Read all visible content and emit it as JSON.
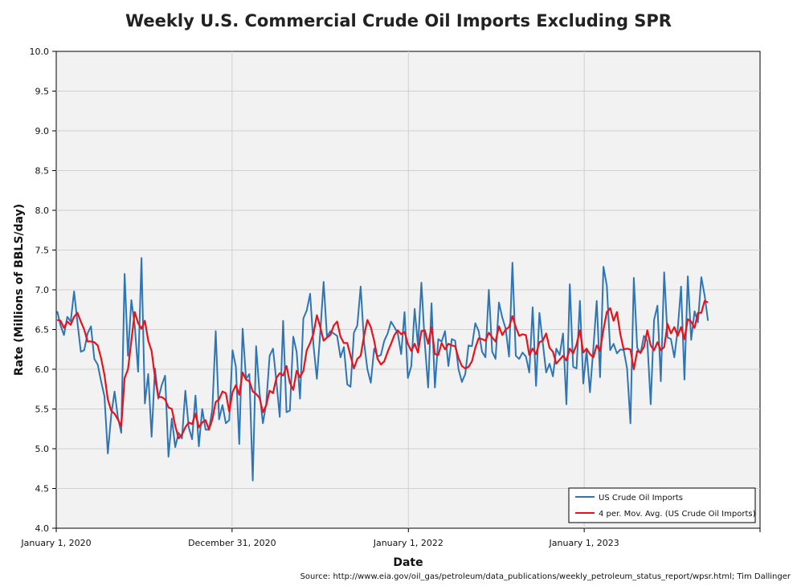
{
  "chart_data": {
    "type": "line",
    "title": "Weekly U.S. Commercial Crude Oil Imports Excluding SPR",
    "xlabel": "Date",
    "ylabel": "Rate (Millions of BBLS/day)",
    "ylim": [
      4.0,
      10.0
    ],
    "yticks": [
      "4.0",
      "4.5",
      "5.0",
      "5.5",
      "6.0",
      "6.5",
      "7.0",
      "7.5",
      "8.0",
      "8.5",
      "9.0",
      "9.5",
      "10.0"
    ],
    "xtick_labels": [
      "January 1, 2020",
      "December 31, 2020",
      "January 1, 2022",
      "January 1, 2023"
    ],
    "x_start": "2020-01-03",
    "grid": true,
    "legend_position": "bottom-right",
    "source": "Source: http://www.eia.gov/oil_gas/petroleum/data_publications/weekly_petroleum_status_report/wpsr.html; Tim Dallinger",
    "series": [
      {
        "name": "US Crude Oil Imports",
        "color": "#2E75B6",
        "values": [
          6.73,
          6.55,
          6.43,
          6.66,
          6.6,
          6.98,
          6.59,
          6.22,
          6.24,
          6.45,
          6.54,
          6.13,
          6.06,
          5.85,
          5.66,
          4.94,
          5.42,
          5.72,
          5.4,
          5.2,
          7.2,
          6.17,
          6.87,
          6.55,
          5.97,
          7.4,
          5.57,
          5.94,
          5.15,
          6.01,
          5.63,
          5.8,
          5.92,
          4.9,
          5.38,
          5.02,
          5.2,
          5.13,
          5.73,
          5.27,
          5.12,
          5.67,
          5.03,
          5.5,
          5.24,
          5.24,
          5.5,
          6.48,
          5.37,
          5.55,
          5.32,
          5.36,
          6.24,
          6.03,
          5.06,
          6.51,
          5.88,
          5.94,
          4.6,
          6.29,
          5.71,
          5.32,
          5.57,
          6.17,
          6.26,
          5.85,
          5.4,
          6.61,
          5.46,
          5.48,
          6.41,
          6.22,
          5.63,
          6.64,
          6.74,
          6.95,
          6.3,
          5.88,
          6.46,
          7.1,
          6.41,
          6.48,
          6.45,
          6.42,
          6.15,
          6.28,
          5.81,
          5.78,
          6.46,
          6.55,
          7.04,
          6.34,
          6.0,
          5.83,
          6.26,
          6.16,
          6.18,
          6.36,
          6.45,
          6.6,
          6.53,
          6.45,
          6.19,
          6.72,
          5.89,
          6.04,
          6.76,
          6.29,
          7.09,
          6.33,
          5.77,
          6.83,
          5.77,
          6.38,
          6.35,
          6.48,
          6.04,
          6.38,
          6.36,
          6.0,
          5.84,
          5.94,
          6.3,
          6.29,
          6.58,
          6.48,
          6.22,
          6.15,
          7.0,
          6.22,
          6.13,
          6.84,
          6.65,
          6.51,
          6.16,
          7.34,
          6.17,
          6.13,
          6.21,
          6.16,
          5.96,
          6.78,
          5.79,
          6.71,
          6.33,
          5.96,
          6.07,
          5.91,
          6.26,
          6.18,
          6.45,
          5.56,
          7.07,
          6.03,
          6.01,
          6.86,
          5.82,
          6.24,
          5.71,
          6.26,
          6.86,
          5.9,
          7.29,
          7.05,
          6.24,
          6.32,
          6.2,
          6.25,
          6.24,
          6.01,
          5.32,
          7.15,
          6.27,
          6.2,
          6.42,
          6.36,
          5.56,
          6.62,
          6.8,
          5.85,
          7.22,
          6.4,
          6.38,
          6.15,
          6.5,
          7.04,
          5.87,
          7.17,
          6.37,
          6.73,
          6.59,
          7.16,
          6.93,
          6.61
        ]
      },
      {
        "name": "4 per. Mov. Avg. (US Crude Oil Imports)",
        "color": "#E8131A",
        "values": [
          6.62,
          6.61,
          6.52,
          6.6,
          6.56,
          6.66,
          6.71,
          6.6,
          6.5,
          6.35,
          6.35,
          6.34,
          6.3,
          6.14,
          5.93,
          5.62,
          5.48,
          5.44,
          5.37,
          5.28,
          5.89,
          6.0,
          6.36,
          6.72,
          6.58,
          6.51,
          6.61,
          6.36,
          6.23,
          5.9,
          5.65,
          5.65,
          5.62,
          5.52,
          5.5,
          5.29,
          5.13,
          5.18,
          5.27,
          5.33,
          5.31,
          5.44,
          5.27,
          5.33,
          5.36,
          5.24,
          5.37,
          5.59,
          5.62,
          5.72,
          5.7,
          5.47,
          5.71,
          5.8,
          5.68,
          5.96,
          5.87,
          5.85,
          5.72,
          5.69,
          5.64,
          5.46,
          5.55,
          5.73,
          5.7,
          5.89,
          5.95,
          5.92,
          6.04,
          5.83,
          5.74,
          5.98,
          5.9,
          5.98,
          6.24,
          6.33,
          6.45,
          6.68,
          6.53,
          6.36,
          6.4,
          6.43,
          6.55,
          6.6,
          6.41,
          6.33,
          6.33,
          6.17,
          6.01,
          6.13,
          6.17,
          6.42,
          6.62,
          6.53,
          6.36,
          6.13,
          6.06,
          6.1,
          6.22,
          6.32,
          6.43,
          6.49,
          6.44,
          6.47,
          6.32,
          6.23,
          6.32,
          6.21,
          6.48,
          6.49,
          6.32,
          6.53,
          6.19,
          6.18,
          6.33,
          6.25,
          6.32,
          6.3,
          6.29,
          6.14,
          6.04,
          6.01,
          6.03,
          6.1,
          6.27,
          6.39,
          6.38,
          6.36,
          6.46,
          6.4,
          6.35,
          6.54,
          6.43,
          6.5,
          6.53,
          6.67,
          6.53,
          6.42,
          6.44,
          6.43,
          6.18,
          6.26,
          6.19,
          6.34,
          6.36,
          6.45,
          6.27,
          6.22,
          6.07,
          6.12,
          6.17,
          6.11,
          6.26,
          6.2,
          6.31,
          6.49,
          6.21,
          6.26,
          6.19,
          6.15,
          6.3,
          6.23,
          6.5,
          6.72,
          6.77,
          6.61,
          6.72,
          6.44,
          6.25,
          6.26,
          6.25,
          6.0,
          6.23,
          6.21,
          6.28,
          6.49,
          6.3,
          6.24,
          6.34,
          6.24,
          6.28,
          6.57,
          6.45,
          6.53,
          6.42,
          6.53,
          6.38,
          6.63,
          6.6,
          6.52,
          6.71,
          6.71,
          6.86,
          6.84
        ]
      }
    ]
  }
}
